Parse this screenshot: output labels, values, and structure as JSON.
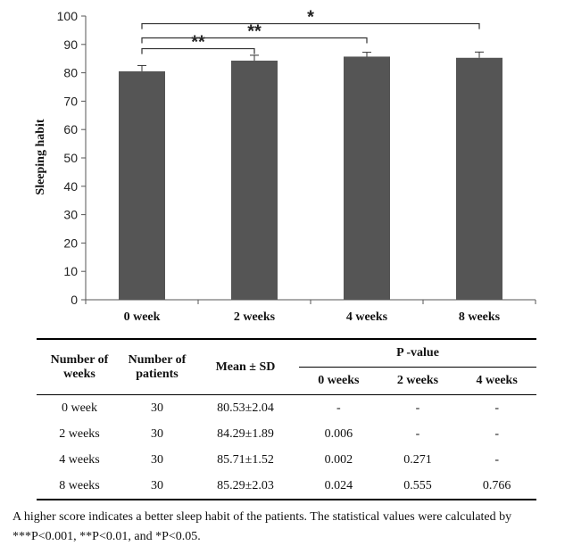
{
  "chart_data": {
    "type": "bar",
    "categories": [
      "0 week",
      "2 weeks",
      "4 weeks",
      "8 weeks"
    ],
    "values": [
      80.53,
      84.29,
      85.71,
      85.29
    ],
    "errors": [
      2.04,
      1.89,
      1.52,
      2.03
    ],
    "ylabel": "Sleeping habit",
    "xlabel": "",
    "ylim": [
      0,
      100
    ],
    "yticks": [
      0,
      10,
      20,
      30,
      40,
      50,
      60,
      70,
      80,
      90,
      100
    ],
    "bar_color": "#555555",
    "grid": false,
    "significance": [
      {
        "from": 0,
        "to": 1,
        "label": "**",
        "level": 88.5
      },
      {
        "from": 0,
        "to": 2,
        "label": "**",
        "level": 92.3
      },
      {
        "from": 0,
        "to": 3,
        "label": "*",
        "level": 97.3
      }
    ]
  },
  "table": {
    "headers": {
      "weeks": [
        "Number of",
        "weeks"
      ],
      "patients": [
        "Number of",
        "patients"
      ],
      "mean": "Mean ± SD",
      "pvalue": "P -value",
      "pcols": [
        "0 weeks",
        "2 weeks",
        "4 weeks"
      ]
    },
    "rows": [
      {
        "weeks": "0  week",
        "patients": "30",
        "mean": "80.53±2.04",
        "p": [
          "-",
          "-",
          "-"
        ]
      },
      {
        "weeks": "2 weeks",
        "patients": "30",
        "mean": "84.29±1.89",
        "p": [
          "0.006",
          "-",
          "-"
        ]
      },
      {
        "weeks": "4 weeks",
        "patients": "30",
        "mean": "85.71±1.52",
        "p": [
          "0.002",
          "0.271",
          "-"
        ]
      },
      {
        "weeks": "8 weeks",
        "patients": "30",
        "mean": "85.29±2.03",
        "p": [
          "0.024",
          "0.555",
          "0.766"
        ]
      }
    ]
  },
  "footnote": "A higher score indicates a better sleep habit of the patients. The statistical values were calculated by ***P<0.001, **P<0.01, and *P<0.05."
}
